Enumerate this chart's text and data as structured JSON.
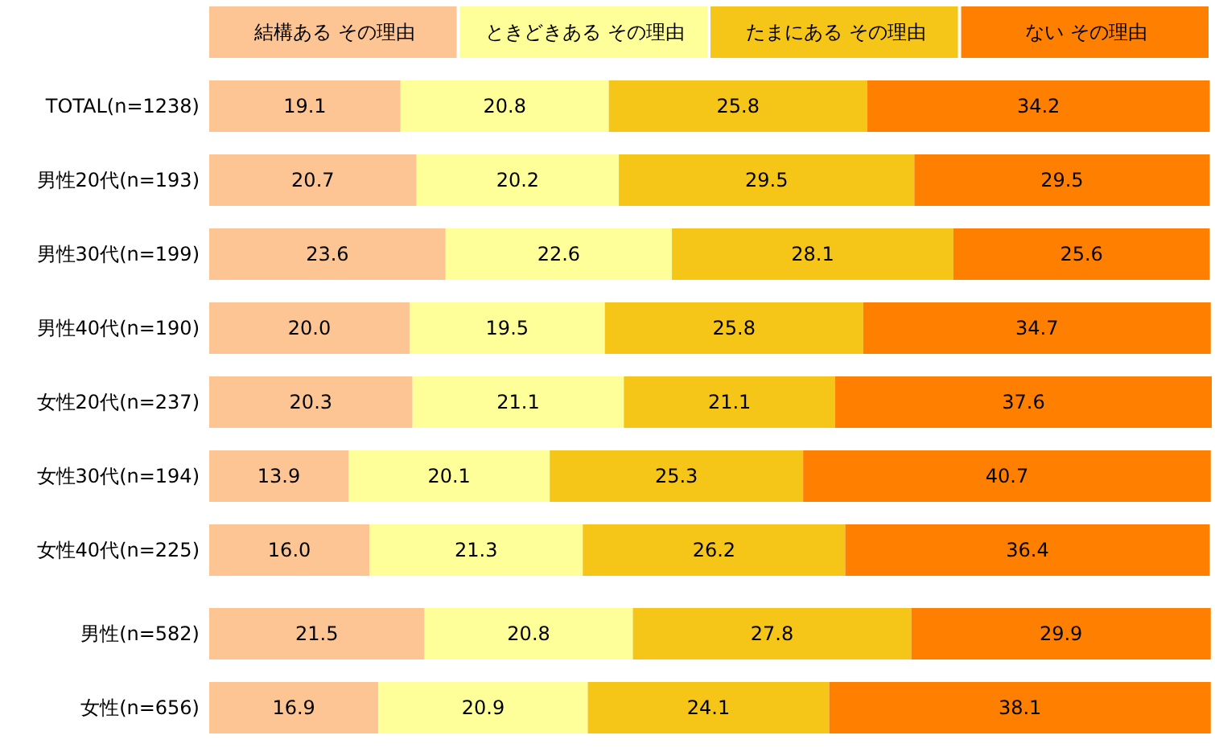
{
  "chart_data": {
    "type": "bar",
    "orientation": "horizontal",
    "stacked": true,
    "legend": "top",
    "categories": [
      "TOTAL(n=1238)",
      "男性20代(n=193)",
      "男性30代(n=199)",
      "男性40代(n=190)",
      "女性20代(n=237)",
      "女性30代(n=194)",
      "女性40代(n=225)",
      "男性(n=582)",
      "女性(n=656)"
    ],
    "series": [
      {
        "name": "結構ある その理由",
        "color": "#fcc593",
        "values": [
          19.1,
          20.7,
          23.6,
          20.0,
          20.3,
          13.9,
          16.0,
          21.5,
          16.9
        ],
        "value_labels": [
          "19.1",
          "20.7",
          "23.6",
          "20.0",
          "20.3",
          "13.9",
          "16.0",
          "21.5",
          "16.9"
        ]
      },
      {
        "name": "ときどきある その理由",
        "color": "#ffff99",
        "values": [
          20.8,
          20.2,
          22.6,
          19.5,
          21.1,
          20.1,
          21.3,
          20.8,
          20.9
        ],
        "value_labels": [
          "20.8",
          "20.2",
          "22.6",
          "19.5",
          "21.1",
          "20.1",
          "21.3",
          "20.8",
          "20.9"
        ]
      },
      {
        "name": "たまにある その理由",
        "color": "#f5c518",
        "values": [
          25.8,
          29.5,
          28.1,
          25.8,
          21.1,
          25.3,
          26.2,
          27.8,
          24.1
        ],
        "value_labels": [
          "25.8",
          "29.5",
          "28.1",
          "25.8",
          "21.1",
          "25.3",
          "26.2",
          "27.8",
          "24.1"
        ]
      },
      {
        "name": "ない その理由",
        "color": "#ff8000",
        "values": [
          34.2,
          29.5,
          25.6,
          34.7,
          37.6,
          40.7,
          36.4,
          29.9,
          38.1
        ],
        "value_labels": [
          "34.2",
          "29.5",
          "25.6",
          "34.7",
          "37.6",
          "40.7",
          "36.4",
          "29.9",
          "38.1"
        ]
      }
    ]
  }
}
